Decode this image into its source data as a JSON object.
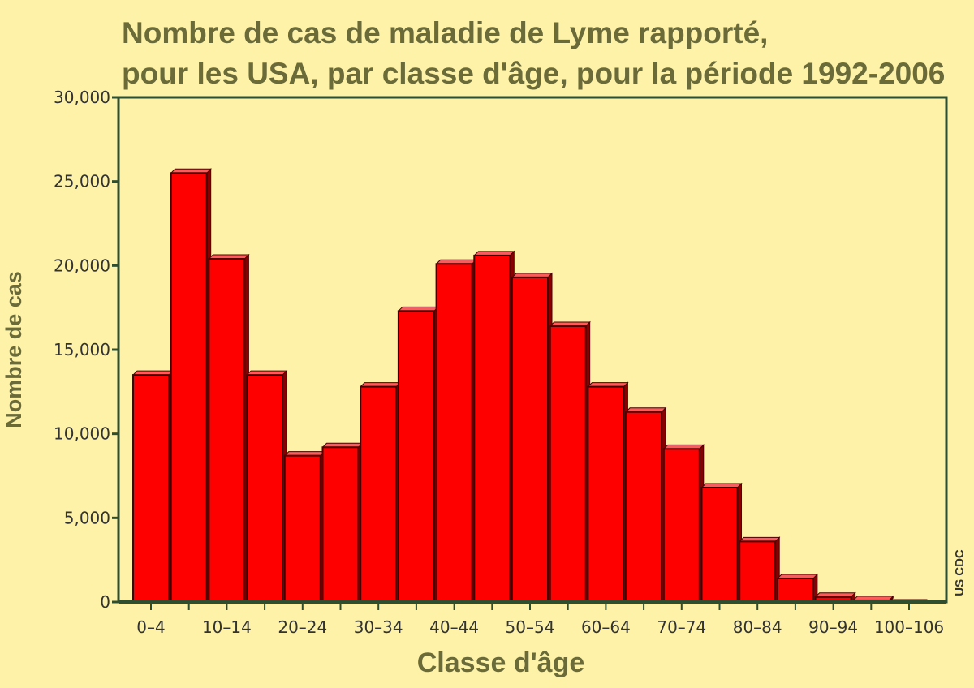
{
  "colors": {
    "background": "#fdf2a8",
    "bar_fill": "#ff0000",
    "bar_outline": "#4a0000",
    "axis": "#2f4d2f",
    "title": "#6b6b3a",
    "text": "#333333"
  },
  "chart_data": {
    "type": "bar",
    "title_lines": [
      "Nombre de cas de maladie de Lyme rapporté,",
      "pour les USA, par classe d'âge, pour la période 1992-2006"
    ],
    "xlabel": "Classe d'âge",
    "ylabel": "Nombre de cas",
    "source": "US CDC",
    "ylim": [
      0,
      30000
    ],
    "yticks": [
      {
        "value": 0,
        "label": "0"
      },
      {
        "value": 5000,
        "label": "5,000"
      },
      {
        "value": 10000,
        "label": "10,000"
      },
      {
        "value": 15000,
        "label": "15,000"
      },
      {
        "value": 20000,
        "label": "20,000"
      },
      {
        "value": 25000,
        "label": "25,000"
      },
      {
        "value": 30000,
        "label": "30,000"
      }
    ],
    "categories": [
      "0–4",
      "5–9",
      "10–14",
      "15–19",
      "20–24",
      "25–29",
      "30–34",
      "35–39",
      "40–44",
      "45–49",
      "50–54",
      "55–59",
      "60–64",
      "65–69",
      "70–74",
      "75–79",
      "80–84",
      "85–89",
      "90–94",
      "95–99",
      "100–106"
    ],
    "category_labels_shown": [
      "0–4",
      "10–14",
      "20–24",
      "30–34",
      "40–44",
      "50–54",
      "60–64",
      "70–74",
      "80–84",
      "90–94",
      "100–106"
    ],
    "values": [
      13500,
      25500,
      20400,
      13500,
      8700,
      9200,
      12800,
      17300,
      20100,
      20600,
      19300,
      16400,
      12800,
      11300,
      9100,
      6800,
      3600,
      1400,
      300,
      100,
      20
    ],
    "grid": false,
    "legend": "none"
  }
}
